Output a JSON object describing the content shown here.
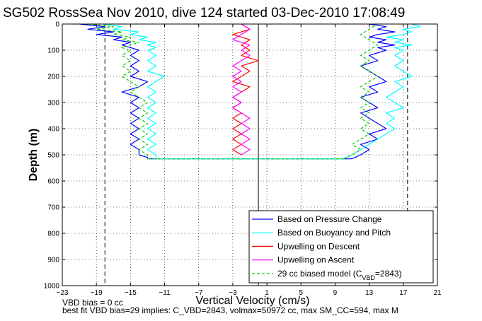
{
  "chart_data": {
    "type": "line",
    "title": "SG502 RossSea Nov 2010, dive 124 started 03-Dec-2010 17:08:49",
    "xlabel": "Vertical Velocity (cm/s)",
    "ylabel": "Depth (m)",
    "xlim": [
      -23,
      21
    ],
    "ylim": [
      0,
      1000
    ],
    "y_reversed": true,
    "xticks": [
      -23,
      -19,
      -15,
      -11,
      -7,
      -3,
      1,
      5,
      9,
      13,
      17,
      21
    ],
    "yticks": [
      0,
      100,
      200,
      300,
      400,
      500,
      600,
      700,
      800,
      900,
      1000
    ],
    "grid": true,
    "legend_position": "bottom-right",
    "reference_lines": [
      {
        "x": -18,
        "style": "dashed",
        "color": "#000000"
      },
      {
        "x": 17.5,
        "style": "dashed",
        "color": "#000000"
      },
      {
        "x": 0,
        "style": "solid",
        "color": "#000000"
      }
    ],
    "series": [
      {
        "name": "Based on Pressure Change",
        "color": "#0000ff",
        "segments": [
          {
            "y": [
              0,
              10,
              20,
              30,
              40,
              50,
              60,
              70,
              80,
              90,
              100,
              120,
              140,
              160,
              180,
              200,
              220,
              240,
              260,
              280,
              300,
              320,
              340,
              360,
              380,
              400,
              420,
              440,
              460,
              480,
              500,
              510,
              515
            ],
            "x": [
              -21,
              -18,
              -20,
              -17,
              -19,
              -16,
              -17,
              -15,
              -16,
              -15,
              -14,
              -15,
              -14,
              -15,
              -14,
              -15,
              -13,
              -14,
              -16,
              -14,
              -15,
              -14,
              -15,
              -14,
              -15,
              -14,
              -15,
              -14,
              -15,
              -14,
              -14,
              -13,
              -13
            ]
          },
          {
            "y": [
              515,
              515
            ],
            "x": [
              -13,
              11
            ]
          },
          {
            "y": [
              515,
              500,
              480,
              460,
              440,
              420,
              400,
              380,
              360,
              340,
              320,
              300,
              280,
              260,
              240,
              220,
              200,
              180,
              160,
              140,
              120,
              100,
              90,
              80,
              70,
              60,
              50,
              40,
              30,
              20,
              10,
              0
            ],
            "x": [
              11,
              12,
              13,
              12,
              14,
              13,
              15,
              14,
              13,
              12,
              14,
              13,
              12,
              14,
              13,
              15,
              14,
              13,
              12,
              14,
              13,
              15,
              14,
              16,
              14,
              15,
              13,
              14,
              16,
              14,
              15,
              13
            ]
          }
        ]
      },
      {
        "name": "Based on Buoyancy and Pitch",
        "color": "#00ffff",
        "segments": [
          {
            "y": [
              0,
              10,
              20,
              30,
              40,
              50,
              60,
              70,
              80,
              90,
              100,
              120,
              140,
              160,
              180,
              200,
              220,
              240,
              260,
              280,
              300,
              320,
              340,
              360,
              380,
              400,
              420,
              440,
              460,
              480,
              500,
              510,
              515
            ],
            "x": [
              -18,
              -16,
              -17,
              -14,
              -15,
              -13,
              -14,
              -12,
              -13,
              -12,
              -13,
              -12,
              -13,
              -12,
              -13,
              -11,
              -12,
              -13,
              -12,
              -13,
              -12,
              -13,
              -12,
              -13,
              -12,
              -13,
              -12,
              -13,
              -12,
              -13,
              -12,
              -12,
              -12
            ]
          },
          {
            "y": [
              515,
              515
            ],
            "x": [
              -12,
              10
            ]
          },
          {
            "y": [
              515,
              500,
              480,
              460,
              440,
              420,
              400,
              380,
              360,
              340,
              320,
              300,
              280,
              260,
              240,
              220,
              200,
              180,
              160,
              140,
              120,
              100,
              90,
              80,
              70,
              60,
              50,
              40,
              30,
              20,
              10,
              0
            ],
            "x": [
              10,
              11,
              12,
              13,
              14,
              15,
              16,
              15,
              16,
              15,
              17,
              16,
              15,
              16,
              17,
              16,
              18,
              17,
              16,
              17,
              16,
              17,
              16,
              18,
              16,
              17,
              15,
              17,
              18,
              17,
              19,
              18
            ]
          }
        ]
      },
      {
        "name": "Upwelling on Descent",
        "color": "#ff0000",
        "segments": [
          {
            "y": [
              0,
              20,
              40,
              60,
              80,
              100,
              120,
              140,
              160,
              180,
              200,
              220,
              240,
              260,
              280,
              300,
              320,
              340,
              360,
              380,
              400,
              420,
              440,
              460,
              480,
              500
            ],
            "x": [
              -2,
              -1,
              -3,
              -1,
              -2,
              -1,
              -2,
              0,
              -2,
              -1,
              -2,
              -3,
              -1,
              -2,
              -3,
              -2,
              -3,
              -2,
              -3,
              -2,
              -3,
              -2,
              -3,
              -2,
              -3,
              -2
            ]
          }
        ]
      },
      {
        "name": "Upwelling on Ascent",
        "color": "#ff00ff",
        "segments": [
          {
            "y": [
              0,
              20,
              40,
              60,
              80,
              100,
              120,
              140,
              160,
              180,
              200,
              220,
              240,
              260,
              280,
              300,
              320,
              340,
              360,
              380,
              400,
              420,
              440,
              460,
              480,
              500
            ],
            "x": [
              -2,
              -1,
              -2,
              -3,
              -1,
              -2,
              -1,
              -2,
              -3,
              -2,
              -3,
              -2,
              -3,
              -2,
              -3,
              -2,
              -3,
              -2,
              -1,
              -2,
              -1,
              -2,
              -1,
              -2,
              -1,
              -2
            ]
          }
        ]
      },
      {
        "name": "29 cc biased model (C<sub>VBD</sub>=2843)",
        "color": "#00cc00",
        "style": "dashed",
        "segments": [
          {
            "y": [
              0,
              10,
              20,
              30,
              40,
              50,
              60,
              70,
              80,
              90,
              100,
              120,
              140,
              160,
              180,
              200,
              220,
              240,
              260,
              280,
              300,
              320,
              340,
              360,
              380,
              400,
              420,
              440,
              460,
              480,
              500,
              510,
              515
            ],
            "x": [
              -20,
              -17,
              -19,
              -16,
              -17,
              -15,
              -16,
              -14,
              -15,
              -16,
              -15,
              -16,
              -15,
              -16,
              -15,
              -16,
              -15,
              -14,
              -15,
              -14,
              -13,
              -14,
              -13,
              -14,
              -13,
              -14,
              -13,
              -14,
              -13,
              -14,
              -13,
              -13,
              -13
            ]
          },
          {
            "y": [
              515,
              515
            ],
            "x": [
              -13,
              10
            ]
          },
          {
            "y": [
              515,
              500,
              480,
              460,
              440,
              420,
              400,
              380,
              360,
              340,
              320,
              300,
              280,
              260,
              240,
              220,
              200,
              180,
              160,
              140,
              120,
              100,
              80,
              60,
              40,
              20,
              0
            ],
            "x": [
              10,
              11,
              12,
              11,
              12,
              13,
              12,
              13,
              12,
              13,
              12,
              13,
              12,
              13,
              12,
              13,
              14,
              13,
              12,
              13,
              12,
              13,
              14,
              13,
              12,
              13,
              14
            ]
          }
        ]
      }
    ],
    "footer": [
      "VBD bias = 0 cc",
      "best fit VBD bias=29 implies: C_VBD=2843, volmax=50972 cc, max SM_CC=594, max M"
    ]
  }
}
